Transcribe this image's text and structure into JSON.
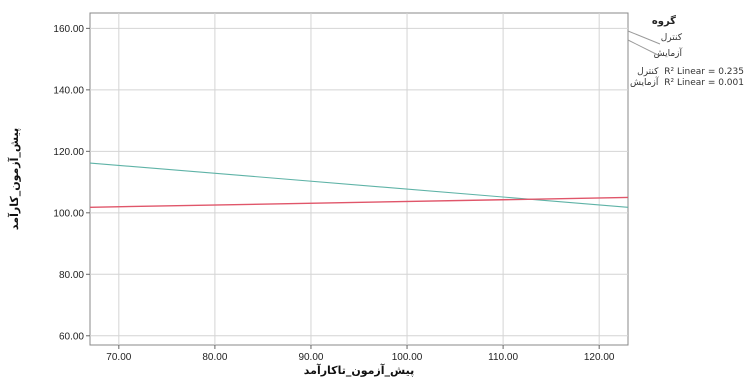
{
  "chart_data": {
    "type": "line",
    "xlabel": "پیش_آزمون_تاکارآمد",
    "ylabel": "پیش_آزمون_کارآمد",
    "xlim": [
      67,
      123
    ],
    "ylim": [
      57,
      165
    ],
    "xticks": [
      70,
      80,
      90,
      100,
      110,
      120
    ],
    "xtick_labels": [
      "70.00",
      "80.00",
      "90.00",
      "100.00",
      "110.00",
      "120.00"
    ],
    "yticks": [
      60,
      80,
      100,
      120,
      140,
      160
    ],
    "ytick_labels": [
      "60.00",
      "80.00",
      "100.00",
      "120.00",
      "140.00",
      "160.00"
    ],
    "grid": true,
    "legend_placement": "top-right",
    "legend_title": "گروه",
    "series": [
      {
        "name": "کنترل",
        "color": "#5fb3a7",
        "x": [
          67,
          123
        ],
        "y": [
          116.2,
          101.8
        ]
      },
      {
        "name": "آزمایش",
        "color": "#e0566a",
        "x": [
          67,
          123
        ],
        "y": [
          101.8,
          105.0
        ]
      }
    ],
    "fit_labels": [
      {
        "group": "کنترل",
        "text": "R² Linear = 0.235"
      },
      {
        "group": "آزمایش",
        "text": "R² Linear = 0.001"
      }
    ]
  }
}
